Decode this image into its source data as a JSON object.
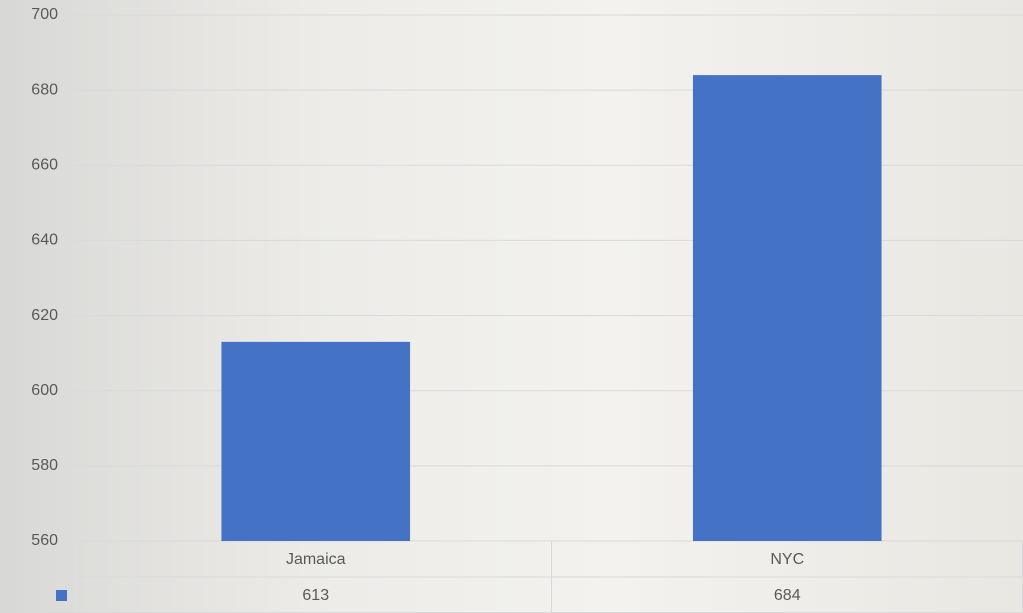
{
  "chart_data": {
    "type": "bar",
    "categories": [
      "Jamaica",
      "NYC"
    ],
    "values": [
      613,
      684
    ],
    "color": "#4472c4",
    "ylim": [
      560,
      700
    ],
    "yticks": [
      560,
      580,
      600,
      620,
      640,
      660,
      680,
      700
    ],
    "grid": true
  }
}
